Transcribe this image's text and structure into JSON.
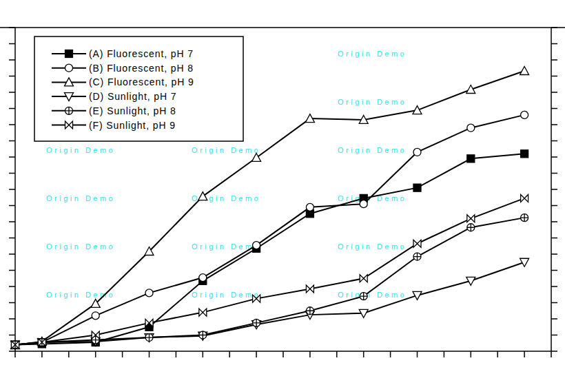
{
  "chart_data": {
    "type": "line",
    "x": [
      0,
      1,
      3,
      5,
      7,
      9,
      11,
      13,
      15,
      17,
      19
    ],
    "xlim": [
      0,
      20
    ],
    "xticks": [
      0,
      1,
      2,
      3,
      4,
      5,
      6,
      7,
      8,
      9,
      10,
      11,
      12,
      13,
      14,
      15,
      16,
      17,
      18,
      19,
      20
    ],
    "ylim": [
      0,
      20
    ],
    "yticks": [
      0,
      1,
      2,
      3,
      4,
      5,
      6,
      7,
      8,
      9,
      10,
      11,
      12,
      13,
      14,
      15,
      16,
      17,
      18,
      19,
      20
    ],
    "tick_labels": false,
    "grid": false,
    "legend": "upper left",
    "annotations": [
      "Origin Demo"
    ],
    "series": [
      {
        "name": "(A) Fluorescent, pH 7",
        "color": "#000000",
        "marker": "square",
        "line_style": "solid",
        "values": [
          0.4,
          0.45,
          0.55,
          1.5,
          4.35,
          6.35,
          8.5,
          9.45,
          10.1,
          11.9,
          12.2
        ]
      },
      {
        "name": "(B) Fluorescent, pH 8",
        "color": "#000000",
        "marker": "circle",
        "line_style": "solid",
        "values": [
          0.38,
          0.55,
          2.2,
          3.6,
          4.55,
          6.55,
          8.9,
          9.1,
          12.3,
          13.8,
          14.6
        ]
      },
      {
        "name": "(C) Fluorescent, pH 9",
        "color": "#000000",
        "marker": "triangle",
        "line_style": "solid",
        "values": [
          0.38,
          0.6,
          2.94,
          6.17,
          9.57,
          11.96,
          14.38,
          14.3,
          14.89,
          16.17,
          17.32
        ]
      },
      {
        "name": "(D) Sunlight, pH 7",
        "color": "#000000",
        "marker": "triangle-down",
        "line_style": "solid",
        "values": [
          0.4,
          0.55,
          0.6,
          0.85,
          0.95,
          1.65,
          2.25,
          2.35,
          3.45,
          4.35,
          5.5
        ]
      },
      {
        "name": "(E) Sunlight, pH 8",
        "color": "#000000",
        "marker": "circle-plus",
        "line_style": "solid",
        "values": [
          0.4,
          0.55,
          0.7,
          0.85,
          1.0,
          1.75,
          2.5,
          3.4,
          5.85,
          7.65,
          8.25
        ]
      },
      {
        "name": "(F) Sunlight, pH 9",
        "color": "#000000",
        "marker": "bowtie",
        "line_style": "solid",
        "values": [
          0.4,
          0.55,
          1.0,
          1.75,
          2.4,
          3.25,
          3.85,
          4.5,
          6.65,
          8.2,
          9.45
        ]
      }
    ]
  }
}
